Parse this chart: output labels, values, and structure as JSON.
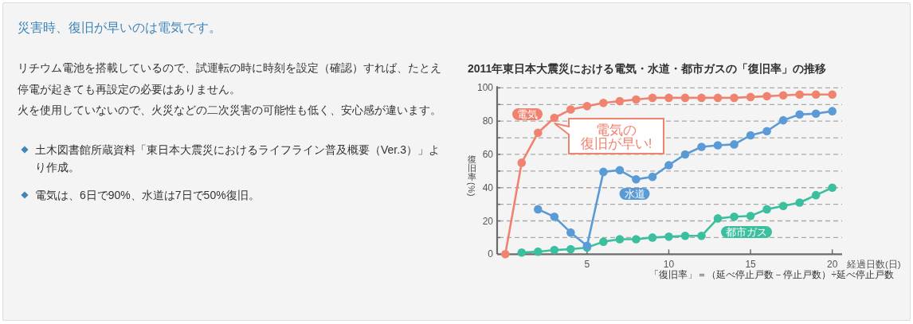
{
  "chart_data": {
    "type": "line",
    "title": "災害時、復旧が早いのは電気です。",
    "subtitle": "2011年東日本大震災における電気・水道・都市ガスの「復旧率」の推移",
    "xlabel": "経過日数(日)",
    "ylabel": "復旧率(%)",
    "x": [
      0,
      1,
      2,
      3,
      4,
      5,
      6,
      7,
      8,
      9,
      10,
      11,
      12,
      13,
      14,
      15,
      16,
      17,
      18,
      19,
      20
    ],
    "series": [
      {
        "name": "都市ガス",
        "color": "#3cbf9e",
        "values": [
          null,
          1,
          1.5,
          2.5,
          3,
          4,
          7.5,
          9,
          9,
          10,
          10.5,
          11,
          11,
          21.5,
          22.5,
          23,
          27,
          29,
          31,
          35.5,
          40
        ]
      },
      {
        "name": "水道",
        "color": "#5b9bd5",
        "values": [
          null,
          null,
          27,
          22.5,
          13,
          5,
          49.5,
          50.5,
          45,
          46.5,
          53.5,
          60,
          64.5,
          65.5,
          66,
          71.5,
          74,
          80.5,
          84,
          84.5,
          86
        ]
      },
      {
        "name": "電気",
        "color": "#f0836f",
        "values": [
          0,
          55,
          73,
          82,
          87,
          89,
          91,
          92,
          93,
          94,
          94,
          94,
          94,
          94,
          94,
          94.5,
          95,
          95.5,
          96,
          96,
          96
        ]
      }
    ],
    "xlim": [
      -0.5,
      20.6
    ],
    "xticks": [
      5,
      10,
      15,
      20
    ],
    "ylim": [
      0,
      101
    ],
    "yticks": [
      0,
      {
        "value": 10,
        "label": null
      },
      20,
      {
        "value": 30,
        "label": null
      },
      40,
      {
        "value": 50,
        "label": null
      },
      60,
      {
        "value": 70,
        "label": null
      },
      80,
      {
        "value": 90,
        "label": null
      },
      100
    ],
    "grid": "y",
    "marker": "circle",
    "line_style": "solid",
    "annotations": [
      "リチウム電池を搭載しているので、試運転の時に時刻を設定（確認）すれば、たとえ停電が起きても再設定の必要はありません。",
      "火を使用していないので、火災などの二次災害の可能性も低く、安心感が違います。",
      "土木図書館所蔵資料「東日本大震災におけるライフライン普及概要（Ver.3）」より作成。",
      "電気は、6日で90%、水道は7日で50%復旧。",
      "「復旧率」＝（延べ停止戸数－停止戸数）÷延べ停止戸数",
      "電気の",
      "復旧が早い!"
    ]
  }
}
